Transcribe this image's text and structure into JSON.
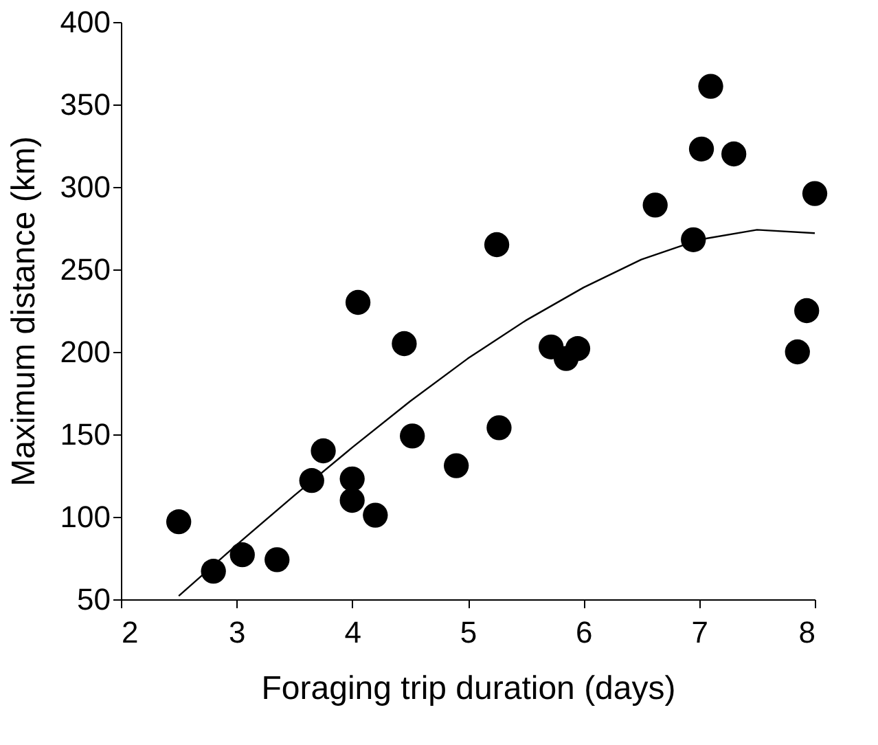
{
  "chart_data": {
    "type": "scatter",
    "xlabel": "Foraging trip duration (days)",
    "ylabel": "Maximum distance (km)",
    "xlim": [
      2,
      8
    ],
    "xticks": [
      2,
      3,
      4,
      5,
      6,
      7,
      8
    ],
    "ylim": [
      50,
      400
    ],
    "yticks": [
      50,
      100,
      150,
      200,
      250,
      300,
      350,
      400
    ],
    "grid": false,
    "series": [
      {
        "color": "#000000",
        "marker": "circle",
        "x": [
          2.5,
          2.8,
          3.05,
          3.35,
          3.65,
          3.75,
          4.0,
          4.0,
          4.2,
          4.05,
          4.45,
          4.52,
          4.9,
          5.25,
          5.27,
          5.72,
          5.85,
          5.95,
          6.62,
          6.95,
          7.02,
          7.1,
          7.3,
          7.85,
          7.93,
          8.0
        ],
        "values": [
          97,
          67,
          77,
          74,
          122,
          140,
          123,
          110,
          101,
          230,
          205,
          149,
          131,
          265,
          154,
          203,
          196,
          202,
          289,
          268,
          323,
          361,
          320,
          200,
          225,
          296
        ]
      },
      {
        "type": "line",
        "color": "#000000",
        "marker": "none",
        "x": [
          2.5,
          3,
          3.5,
          4,
          4.5,
          5,
          5.5,
          6,
          6.5,
          7,
          7.5,
          8
        ],
        "values": [
          52,
          83,
          113,
          142,
          170,
          196,
          219,
          239,
          256,
          268,
          274,
          272
        ]
      }
    ]
  }
}
